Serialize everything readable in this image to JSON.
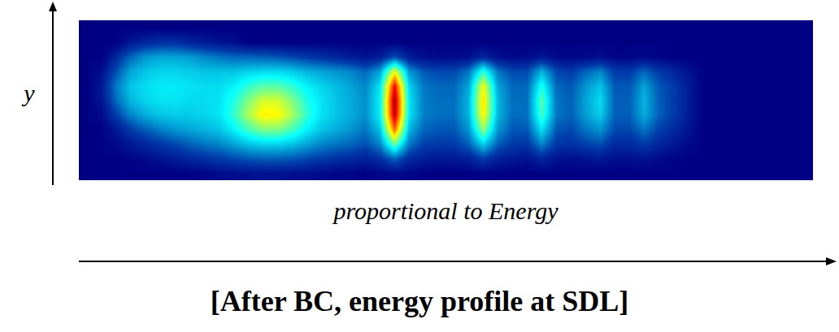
{
  "chart_data": {
    "type": "heatmap",
    "caption": "[After BC, energy profile at SDL]",
    "x_label": "proportional to Energy",
    "y_label": "y",
    "color": "Jet",
    "zlim": [
      0,
      100
    ],
    "tick_labels": false,
    "z": [
      [
        0,
        0,
        0,
        0,
        0,
        0,
        0,
        0,
        0,
        0,
        0,
        0,
        0,
        0,
        0,
        0,
        0,
        0,
        0,
        0,
        0,
        0,
        0,
        0,
        0,
        0,
        0,
        0,
        0,
        0,
        0,
        0,
        0,
        0,
        0,
        0,
        0,
        0,
        0,
        0,
        0,
        0,
        0,
        0,
        0,
        0,
        0,
        0,
        0,
        0
      ],
      [
        0,
        0,
        0,
        5,
        8,
        10,
        10,
        8,
        6,
        4,
        3,
        0,
        0,
        0,
        0,
        0,
        0,
        0,
        0,
        0,
        0,
        0,
        0,
        0,
        0,
        0,
        0,
        0,
        0,
        0,
        0,
        0,
        0,
        0,
        0,
        0,
        0,
        0,
        0,
        0,
        0,
        0,
        0,
        0,
        0,
        0,
        0,
        0,
        0,
        0
      ],
      [
        0,
        0,
        8,
        18,
        24,
        26,
        26,
        25,
        22,
        20,
        18,
        18,
        17,
        16,
        14,
        12,
        10,
        8,
        6,
        4,
        6,
        15,
        6,
        3,
        2,
        2,
        3,
        8,
        3,
        2,
        2,
        5,
        2,
        1,
        2,
        3,
        1,
        1,
        2,
        1,
        0,
        0,
        0,
        0,
        0,
        0,
        0,
        0,
        0,
        0
      ],
      [
        0,
        3,
        15,
        26,
        30,
        32,
        32,
        31,
        30,
        30,
        30,
        32,
        33,
        33,
        31,
        28,
        26,
        24,
        22,
        18,
        26,
        62,
        24,
        16,
        14,
        14,
        20,
        42,
        20,
        14,
        14,
        28,
        14,
        12,
        18,
        22,
        12,
        12,
        18,
        12,
        8,
        4,
        0,
        0,
        0,
        0,
        0,
        0,
        0,
        0
      ],
      [
        0,
        5,
        20,
        30,
        33,
        35,
        35,
        34,
        33,
        33,
        36,
        42,
        46,
        46,
        42,
        36,
        32,
        29,
        26,
        22,
        34,
        88,
        32,
        20,
        18,
        18,
        26,
        62,
        26,
        18,
        18,
        40,
        18,
        16,
        24,
        30,
        16,
        16,
        26,
        16,
        12,
        6,
        0,
        0,
        0,
        0,
        0,
        0,
        0,
        0
      ],
      [
        0,
        4,
        18,
        28,
        32,
        34,
        34,
        33,
        33,
        34,
        40,
        50,
        58,
        58,
        50,
        40,
        34,
        30,
        27,
        23,
        36,
        96,
        34,
        21,
        19,
        19,
        28,
        66,
        28,
        19,
        19,
        46,
        20,
        17,
        26,
        33,
        17,
        17,
        28,
        17,
        12,
        6,
        0,
        0,
        0,
        0,
        0,
        0,
        0,
        0
      ],
      [
        0,
        2,
        12,
        22,
        27,
        30,
        31,
        31,
        32,
        34,
        42,
        54,
        64,
        63,
        54,
        42,
        34,
        30,
        27,
        23,
        36,
        94,
        34,
        21,
        19,
        19,
        28,
        64,
        28,
        19,
        19,
        44,
        20,
        17,
        25,
        31,
        17,
        17,
        27,
        17,
        12,
        6,
        0,
        0,
        0,
        0,
        0,
        0,
        0,
        0
      ],
      [
        0,
        0,
        5,
        12,
        17,
        21,
        24,
        26,
        28,
        30,
        36,
        44,
        50,
        50,
        44,
        36,
        30,
        27,
        24,
        20,
        30,
        78,
        28,
        18,
        16,
        16,
        24,
        52,
        24,
        16,
        16,
        34,
        16,
        14,
        20,
        24,
        14,
        14,
        20,
        13,
        9,
        4,
        0,
        0,
        0,
        0,
        0,
        0,
        0,
        0
      ],
      [
        0,
        0,
        2,
        5,
        8,
        11,
        14,
        17,
        20,
        22,
        26,
        30,
        32,
        32,
        30,
        26,
        22,
        20,
        18,
        15,
        22,
        48,
        20,
        13,
        12,
        12,
        17,
        32,
        17,
        12,
        11,
        22,
        11,
        10,
        13,
        15,
        9,
        9,
        12,
        8,
        5,
        2,
        0,
        0,
        0,
        0,
        0,
        0,
        0,
        0
      ],
      [
        0,
        0,
        0,
        1,
        2,
        4,
        6,
        8,
        10,
        12,
        14,
        16,
        17,
        17,
        16,
        14,
        12,
        10,
        9,
        7,
        10,
        18,
        9,
        6,
        5,
        5,
        7,
        12,
        7,
        5,
        4,
        8,
        4,
        3,
        4,
        5,
        3,
        3,
        4,
        2,
        1,
        0,
        0,
        0,
        0,
        0,
        0,
        0,
        0,
        0
      ],
      [
        0,
        0,
        0,
        0,
        0,
        0,
        0,
        0,
        1,
        2,
        3,
        3,
        4,
        4,
        3,
        3,
        2,
        1,
        1,
        0,
        1,
        2,
        1,
        0,
        0,
        0,
        0,
        1,
        0,
        0,
        0,
        0,
        0,
        0,
        0,
        0,
        0,
        0,
        0,
        0,
        0,
        0,
        0,
        0,
        0,
        0,
        0,
        0,
        0,
        0
      ]
    ]
  }
}
